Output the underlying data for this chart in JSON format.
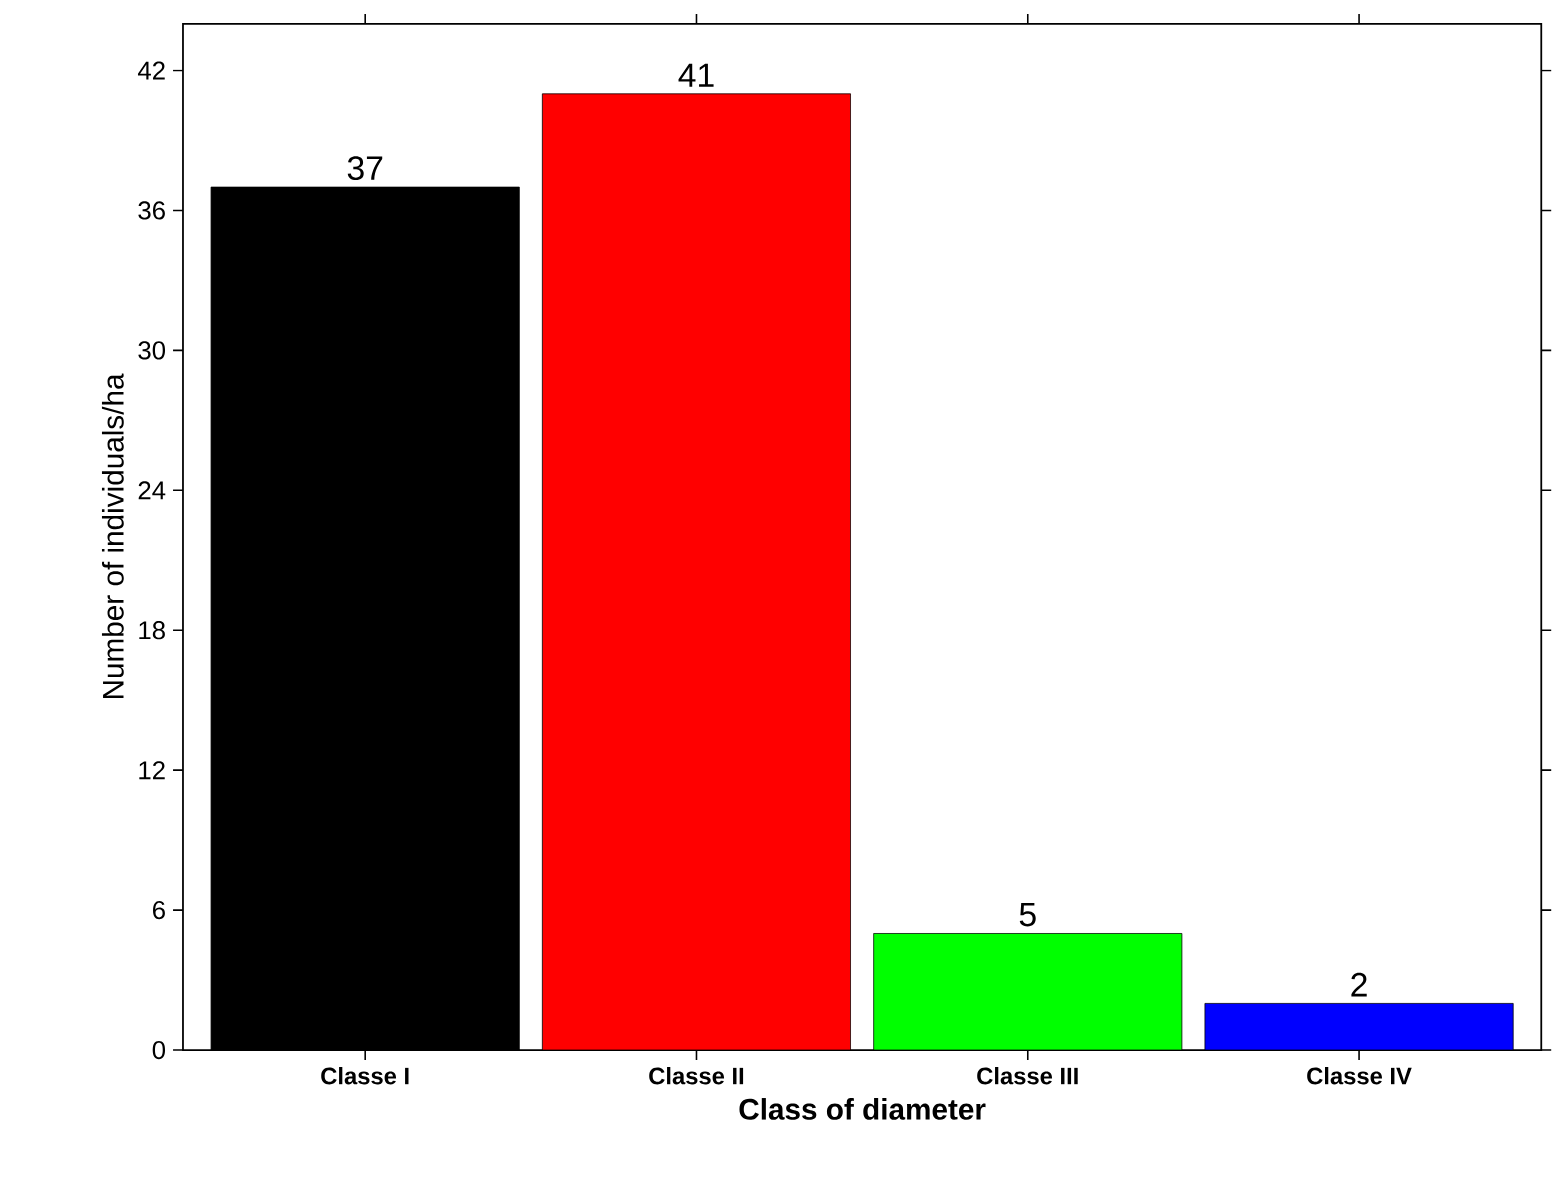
{
  "chart_data": {
    "type": "bar",
    "xlabel": "Class of diameter",
    "ylabel": "Number of individuals/ha",
    "categories": [
      "Classe I",
      "Classe II",
      "Classe III",
      "Classe IV"
    ],
    "values": [
      37,
      41,
      5,
      2
    ],
    "colors": [
      "#000000",
      "#ff0000",
      "#00ff00",
      "#0000ff"
    ],
    "ylim": [
      0,
      44
    ],
    "yticks": [
      0,
      6,
      12,
      18,
      24,
      30,
      36,
      42
    ],
    "data_labels": true
  }
}
